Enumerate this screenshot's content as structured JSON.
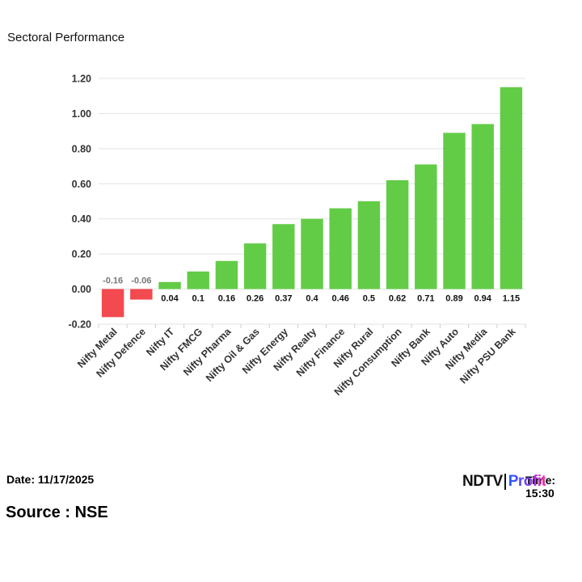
{
  "page": {
    "title": "Sectoral Performance",
    "date": "Date: 11/17/2025",
    "time": "Time: 15:30",
    "source": "Source : NSE",
    "logo": {
      "ndtv": "NDTV",
      "profit": "Profit"
    }
  },
  "colors": {
    "positive": "#63cc47",
    "negative": "#f24a4f",
    "grid": "#e3e3e3",
    "axis_text": "#333333"
  },
  "chart_data": {
    "type": "bar",
    "title": "",
    "xlabel": "",
    "ylabel": "",
    "categories": [
      "Nifty Metal",
      "Nifty Defence",
      "Nifty IT",
      "Nifty FMCG",
      "Nifty Pharma",
      "Nifty Oil & Gas",
      "Nifty Energy",
      "Nifty Realty",
      "Nifty Finance",
      "Nifty Rural",
      "Nifty Consumption",
      "Nifty Bank",
      "Nifty Auto",
      "Nifty Media",
      "Nifty PSU Bank"
    ],
    "values": [
      -0.16,
      -0.06,
      0.04,
      0.1,
      0.16,
      0.26,
      0.37,
      0.4,
      0.46,
      0.5,
      0.62,
      0.71,
      0.89,
      0.94,
      1.15
    ],
    "data_labels": [
      "-0.16",
      "-0.06",
      "0.04",
      "0.1",
      "0.16",
      "0.26",
      "0.37",
      "0.4",
      "0.46",
      "0.5",
      "0.62",
      "0.71",
      "0.89",
      "0.94",
      "1.15"
    ],
    "ylim": [
      -0.2,
      1.2
    ],
    "yticks": [
      -0.2,
      0.0,
      0.2,
      0.4,
      0.6,
      0.8,
      1.0,
      1.2
    ],
    "ytick_labels": [
      "-0.20",
      "0.00",
      "0.20",
      "0.40",
      "0.60",
      "0.80",
      "1.00",
      "1.20"
    ],
    "grid": true,
    "legend": "none"
  }
}
